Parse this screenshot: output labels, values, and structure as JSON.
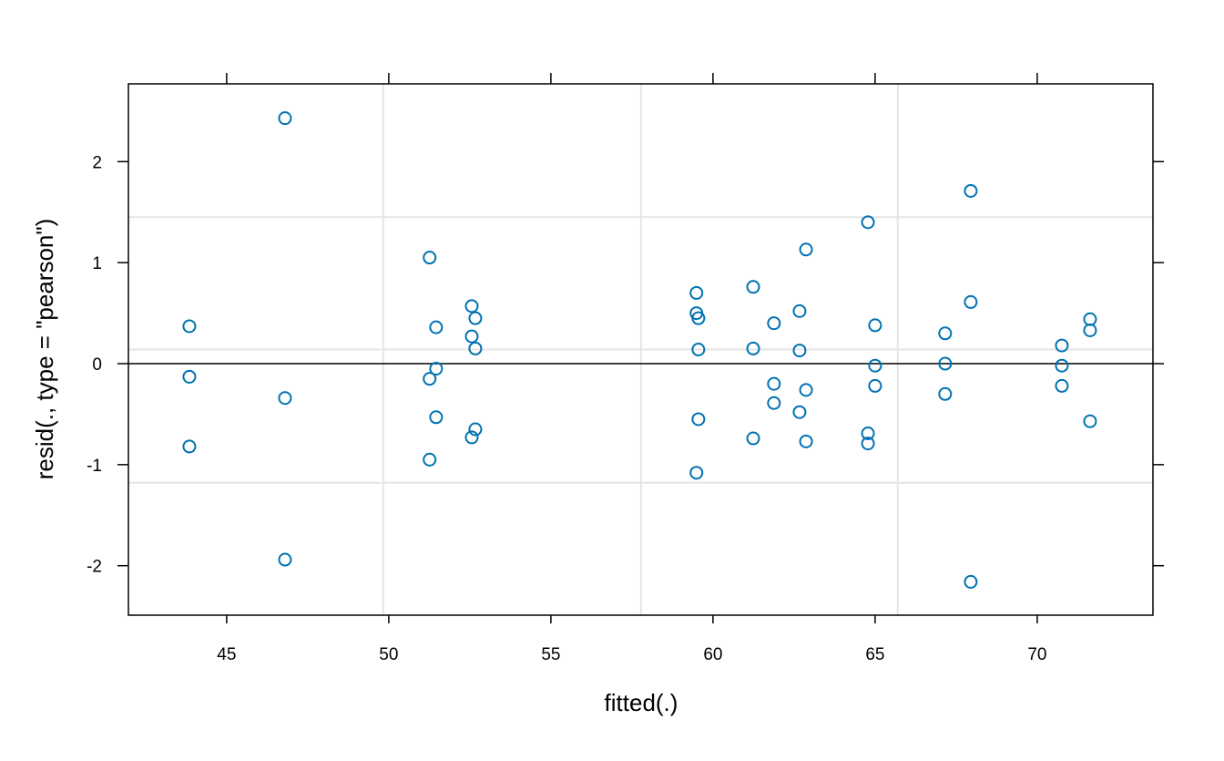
{
  "chart_data": {
    "type": "scatter",
    "title": "",
    "xlabel": "fitted(.)",
    "ylabel": "resid(., type = \"pearson\")",
    "xlim": [
      41.97,
      73.57
    ],
    "ylim": [
      -2.49,
      2.77
    ],
    "xticks": [
      45,
      50,
      55,
      60,
      65,
      70
    ],
    "yticks": [
      -2,
      -1,
      0,
      1,
      2
    ],
    "reference_line_y": 0,
    "gridlines_x": [
      49.83,
      57.78,
      65.7
    ],
    "gridlines_y": [
      -1.18,
      0.14,
      1.45
    ],
    "point_color": "#0072B2",
    "marker": "open-circle",
    "points": [
      [
        43.85,
        0.37
      ],
      [
        43.85,
        -0.13
      ],
      [
        43.85,
        -0.82
      ],
      [
        46.8,
        2.43
      ],
      [
        46.8,
        -0.34
      ],
      [
        46.8,
        -1.94
      ],
      [
        51.26,
        1.05
      ],
      [
        51.26,
        -0.15
      ],
      [
        51.26,
        -0.95
      ],
      [
        51.46,
        0.36
      ],
      [
        51.46,
        -0.05
      ],
      [
        51.46,
        -0.53
      ],
      [
        52.56,
        0.57
      ],
      [
        52.56,
        0.27
      ],
      [
        52.56,
        -0.73
      ],
      [
        52.67,
        0.45
      ],
      [
        52.67,
        0.15
      ],
      [
        52.67,
        -0.65
      ],
      [
        59.49,
        0.7
      ],
      [
        59.49,
        0.5
      ],
      [
        59.49,
        -1.08
      ],
      [
        59.55,
        0.45
      ],
      [
        59.55,
        0.14
      ],
      [
        59.55,
        -0.55
      ],
      [
        61.24,
        0.76
      ],
      [
        61.24,
        0.15
      ],
      [
        61.24,
        -0.74
      ],
      [
        61.88,
        0.4
      ],
      [
        61.88,
        -0.2
      ],
      [
        61.88,
        -0.39
      ],
      [
        62.67,
        0.52
      ],
      [
        62.67,
        0.13
      ],
      [
        62.67,
        -0.48
      ],
      [
        62.87,
        1.13
      ],
      [
        62.87,
        -0.26
      ],
      [
        62.87,
        -0.77
      ],
      [
        64.78,
        1.4
      ],
      [
        64.78,
        -0.69
      ],
      [
        64.78,
        -0.79
      ],
      [
        65.0,
        0.38
      ],
      [
        65.0,
        -0.02
      ],
      [
        65.0,
        -0.22
      ],
      [
        67.16,
        0.3
      ],
      [
        67.16,
        0.0
      ],
      [
        67.16,
        -0.3
      ],
      [
        67.95,
        1.71
      ],
      [
        67.95,
        0.61
      ],
      [
        67.95,
        -2.16
      ],
      [
        70.76,
        0.18
      ],
      [
        70.76,
        -0.02
      ],
      [
        70.76,
        -0.22
      ],
      [
        71.63,
        0.44
      ],
      [
        71.63,
        0.33
      ],
      [
        71.63,
        -0.57
      ]
    ]
  }
}
